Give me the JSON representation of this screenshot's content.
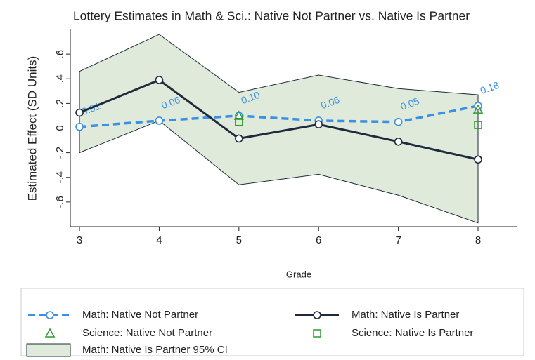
{
  "chart_data": {
    "type": "line",
    "title": "Lottery Estimates in Math & Sci.: Native Not Partner vs. Native Is Partner",
    "xlabel": "Grade",
    "ylabel": "Estimated Effect (SD Units)",
    "x": [
      3,
      4,
      5,
      6,
      7,
      8
    ],
    "xlim": [
      2.885,
      8.485
    ],
    "xticks": [
      3,
      4,
      5,
      6,
      7,
      8
    ],
    "ylim": [
      -0.8,
      0.8
    ],
    "yticks": [
      {
        "value": -0.6,
        "label": "-.6"
      },
      {
        "value": -0.4,
        "label": "-.4"
      },
      {
        "value": -0.2,
        "label": "-.2"
      },
      0,
      {
        "value": 0.2,
        "label": ".2"
      },
      {
        "value": 0.4,
        "label": ".4"
      },
      {
        "value": 0.6,
        "label": ".6"
      }
    ],
    "series": [
      {
        "name": "Math: Native Not Partner",
        "color": "#3a8fe6",
        "line": "dashed",
        "marker": "circle",
        "values": [
          0.01,
          0.06,
          0.1,
          0.06,
          0.05,
          0.18
        ],
        "value_labels": [
          "0.01",
          "0.06",
          "0.10",
          "0.06",
          "0.05",
          "0.18"
        ]
      },
      {
        "name": "Math: Native Is Partner",
        "color": "#1f2b3c",
        "line": "solid",
        "marker": "circle",
        "values": [
          0.125,
          0.39,
          -0.085,
          0.03,
          -0.11,
          -0.255
        ]
      },
      {
        "name": "Science: Native Not Partner",
        "color": "#2e9a2e",
        "line": "none",
        "marker": "triangle",
        "values": [
          null,
          null,
          0.1,
          null,
          null,
          0.15
        ]
      },
      {
        "name": "Science: Native Is Partner",
        "color": "#2e9a2e",
        "line": "none",
        "marker": "square",
        "values": [
          null,
          null,
          0.05,
          null,
          null,
          0.025
        ]
      }
    ],
    "band": {
      "name": "Math: Native Is Partner 95% CI",
      "color": "#dfeadb",
      "edge": "#1f2b3c",
      "upper": [
        0.46,
        0.76,
        0.29,
        0.43,
        0.32,
        0.27
      ],
      "lower": [
        -0.2,
        0.06,
        -0.46,
        -0.375,
        -0.545,
        -0.77
      ]
    }
  }
}
